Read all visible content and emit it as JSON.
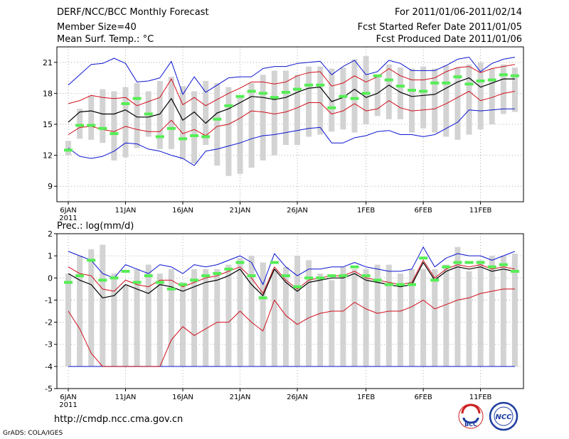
{
  "header": {
    "title": "DERF/NCC/BCC Monthly Forecast",
    "member_size": "Member Size=40",
    "variable": "Mean Surf. Temp.: °C",
    "forecast_period": "For 2011/01/06-2011/02/14",
    "start_date": "Fcst Started Refer Date 2011/01/05",
    "produced_date": "Fcst Produced Date 2011/01/06"
  },
  "footer": {
    "url": "http://cmdp.ncc.cma.gov.cn",
    "credit": "GrADS: COLA/IGES",
    "logo_bcc": "BCC",
    "logo_ncc": "NCC"
  },
  "colors": {
    "box": "#d3d3d3",
    "median": "#54ee54",
    "mean": "#000000",
    "spread": "#d0101c",
    "extreme": "#0a14d0",
    "grid": "#9a9a9a"
  },
  "chart_data": [
    {
      "type": "box_plume",
      "title": "Mean Surf. Temp.: °C",
      "x_tick_labels": [
        "6JAN",
        "11JAN",
        "16JAN",
        "21JAN",
        "26JAN",
        "1FEB",
        "6FEB",
        "11FEB"
      ],
      "x_year_label": "2011",
      "x_tick_days": [
        1,
        6,
        11,
        16,
        21,
        27,
        32,
        37
      ],
      "days": 40,
      "ylim": [
        7.5,
        22.5
      ],
      "y_ticks": [
        9,
        12,
        15,
        18,
        21
      ],
      "box_low": [
        12.0,
        13.6,
        13.5,
        13.2,
        11.5,
        11.8,
        12.7,
        13.8,
        12.6,
        12.6,
        11.6,
        11.2,
        13.0,
        11.0,
        10.0,
        10.2,
        10.8,
        11.5,
        12.0,
        13.0,
        13.0,
        13.8,
        14.0,
        14.3,
        14.5,
        14.2,
        15.0,
        15.8,
        15.5,
        15.5,
        14.2,
        14.6,
        14.2,
        13.8,
        13.5,
        14.0,
        14.5,
        15.0,
        16.0,
        16.2
      ],
      "box_high": [
        13.4,
        16.5,
        17.8,
        18.4,
        18.2,
        18.6,
        19.0,
        18.2,
        19.2,
        19.6,
        18.7,
        18.2,
        19.2,
        19.0,
        18.6,
        17.8,
        19.0,
        19.8,
        20.2,
        20.2,
        19.8,
        20.6,
        20.6,
        20.4,
        20.5,
        21.3,
        21.6,
        19.8,
        20.8,
        20.5,
        20.4,
        20.6,
        20.4,
        20.7,
        20.5,
        20.8,
        21.0,
        20.4,
        20.8,
        20.5
      ],
      "series": [
        {
          "name": "median",
          "values": [
            12.5,
            14.9,
            14.9,
            14.6,
            14.1,
            17.0,
            17.5,
            16.0,
            13.8,
            14.6,
            13.6,
            13.9,
            13.8,
            15.5,
            16.8,
            17.7,
            18.2,
            18.0,
            17.6,
            18.1,
            18.4,
            18.8,
            18.8,
            16.6,
            17.7,
            17.5,
            18.0,
            19.7,
            19.3,
            18.7,
            18.3,
            18.2,
            19.0,
            19.0,
            19.6,
            18.9,
            19.2,
            19.3,
            19.8,
            19.7
          ]
        },
        {
          "name": "ens-mean",
          "values": [
            15.2,
            16.2,
            16.3,
            16.0,
            16.0,
            16.4,
            15.7,
            15.7,
            16.0,
            17.5,
            15.4,
            16.2,
            15.1,
            16.1,
            16.5,
            17.1,
            17.7,
            17.6,
            17.4,
            17.6,
            18.1,
            18.5,
            18.6,
            17.2,
            17.6,
            18.4,
            17.6,
            18.0,
            18.8,
            18.1,
            17.7,
            17.8,
            17.9,
            18.5,
            19.1,
            19.5,
            18.6,
            19.0,
            19.4,
            19.4
          ]
        },
        {
          "name": "ens-plus-sd",
          "values": [
            17.0,
            17.3,
            17.8,
            17.6,
            17.5,
            17.6,
            16.8,
            17.2,
            17.6,
            19.4,
            16.9,
            17.6,
            16.8,
            17.4,
            18.0,
            18.5,
            19.1,
            19.1,
            18.9,
            19.1,
            19.7,
            20.0,
            20.1,
            18.7,
            19.0,
            19.7,
            19.1,
            19.6,
            20.4,
            19.7,
            19.3,
            19.3,
            19.5,
            20.1,
            20.5,
            20.6,
            20.0,
            20.4,
            20.6,
            20.8
          ]
        },
        {
          "name": "ens-minus-sd",
          "values": [
            14.0,
            14.7,
            14.8,
            14.5,
            14.3,
            14.8,
            14.5,
            14.3,
            14.3,
            15.4,
            14.1,
            14.5,
            13.9,
            14.8,
            15.0,
            15.6,
            16.3,
            16.2,
            16.0,
            16.2,
            16.6,
            17.1,
            17.1,
            16.0,
            16.3,
            17.0,
            16.3,
            16.5,
            17.3,
            16.6,
            16.3,
            16.4,
            16.5,
            17.0,
            17.6,
            18.2,
            17.3,
            17.6,
            18.0,
            18.2
          ]
        },
        {
          "name": "ens-max",
          "values": [
            18.8,
            19.8,
            20.8,
            20.9,
            21.4,
            20.9,
            19.1,
            19.2,
            19.5,
            21.1,
            17.9,
            19.6,
            18.1,
            18.8,
            19.5,
            19.6,
            19.6,
            20.4,
            20.6,
            20.6,
            20.9,
            21.0,
            21.1,
            19.8,
            20.6,
            21.2,
            19.8,
            20.1,
            21.2,
            20.9,
            20.2,
            20.2,
            20.2,
            20.7,
            21.3,
            21.5,
            20.1,
            20.9,
            21.3,
            21.5
          ]
        },
        {
          "name": "ens-min",
          "values": [
            12.7,
            11.9,
            11.7,
            11.9,
            12.4,
            13.2,
            13.1,
            12.6,
            12.4,
            12.0,
            11.7,
            11.0,
            12.4,
            12.6,
            12.9,
            13.2,
            13.6,
            13.9,
            14.0,
            14.2,
            14.4,
            14.6,
            14.7,
            13.2,
            13.2,
            13.7,
            13.9,
            14.3,
            14.4,
            14.0,
            14.0,
            13.8,
            14.0,
            14.6,
            15.2,
            16.4,
            16.3,
            16.4,
            16.5,
            16.5
          ]
        }
      ]
    },
    {
      "type": "box_plume",
      "title": "Prec.: log(mm/d)",
      "x_tick_labels": [
        "6JAN",
        "11JAN",
        "16JAN",
        "21JAN",
        "26JAN",
        "1FEB",
        "6FEB",
        "11FEB"
      ],
      "x_year_label": "2011",
      "x_tick_days": [
        1,
        6,
        11,
        16,
        21,
        27,
        32,
        37
      ],
      "days": 40,
      "ylim": [
        -5,
        2
      ],
      "y_ticks": [
        -5,
        -4,
        -3,
        -2,
        -1,
        0,
        1,
        2
      ],
      "box_low": [
        -4.0,
        -4.0,
        -4.0,
        -4.0,
        -4.0,
        -4.0,
        -4.0,
        -4.0,
        -4.0,
        -4.0,
        -4.0,
        -4.0,
        -4.0,
        -4.0,
        -4.0,
        -4.0,
        -4.0,
        -4.0,
        -4.0,
        -4.0,
        -4.0,
        -4.0,
        -4.0,
        -4.0,
        -4.0,
        -4.0,
        -4.0,
        -4.0,
        -4.0,
        -4.0,
        -4.0,
        -4.0,
        -4.0,
        -4.0,
        -4.0,
        -4.0,
        -4.0,
        -4.0,
        -4.0,
        -4.0
      ],
      "box_high": [
        0.2,
        1.0,
        1.3,
        1.5,
        0.2,
        -0.3,
        0.4,
        0.6,
        0.2,
        0.4,
        -0.2,
        0.4,
        0.4,
        0.4,
        0.6,
        0.9,
        1.0,
        0.7,
        0.4,
        0.5,
        1.0,
        0.8,
        0.2,
        -0.1,
        0.5,
        0.4,
        0.4,
        0.6,
        0.6,
        0.2,
        0.4,
        0.4,
        0.4,
        0.6,
        1.4,
        0.3,
        0.8,
        1.0,
        1.0,
        1.1
      ],
      "series": [
        {
          "name": "median",
          "values": [
            -0.2,
            0.1,
            0.8,
            -0.1,
            0.0,
            0.3,
            -0.2,
            0.1,
            -0.2,
            -0.5,
            -0.3,
            -0.1,
            0.1,
            0.2,
            0.4,
            0.7,
            0.1,
            -0.9,
            0.7,
            0.1,
            -0.4,
            0.0,
            0.0,
            0.1,
            0.1,
            0.5,
            0.1,
            -0.1,
            -0.3,
            -0.3,
            -0.3,
            0.9,
            -0.1,
            0.5,
            0.7,
            0.7,
            0.7,
            0.5,
            0.6,
            0.3
          ]
        },
        {
          "name": "ens-mean",
          "values": [
            0.2,
            -0.1,
            -0.3,
            -0.9,
            -0.8,
            -0.3,
            -0.5,
            -0.7,
            -0.3,
            -0.4,
            -0.6,
            -0.4,
            -0.2,
            -0.1,
            0.1,
            0.4,
            -0.3,
            -0.8,
            0.4,
            -0.2,
            -0.6,
            -0.2,
            -0.1,
            0.0,
            0.0,
            0.2,
            -0.1,
            -0.2,
            -0.3,
            -0.4,
            -0.3,
            0.7,
            -0.1,
            0.3,
            0.5,
            0.4,
            0.5,
            0.3,
            0.4,
            0.3
          ]
        },
        {
          "name": "ens-plus-sd",
          "values": [
            0.5,
            0.2,
            0.1,
            -0.5,
            -0.6,
            -0.1,
            -0.3,
            -0.4,
            -0.1,
            -0.1,
            -0.4,
            -0.2,
            0.0,
            0.1,
            0.3,
            0.5,
            0.0,
            -0.7,
            0.5,
            -0.1,
            -0.5,
            -0.1,
            0.0,
            0.1,
            0.1,
            0.3,
            0.0,
            -0.1,
            -0.2,
            -0.3,
            -0.2,
            0.8,
            0.0,
            0.4,
            0.6,
            0.5,
            0.6,
            0.4,
            0.5,
            0.4
          ]
        },
        {
          "name": "ens-minus-sd",
          "values": [
            -1.5,
            -2.3,
            -3.4,
            -4.0,
            -4.0,
            -4.0,
            -4.0,
            -4.0,
            -4.0,
            -2.8,
            -2.2,
            -2.6,
            -2.3,
            -2.0,
            -2.0,
            -1.5,
            -2.0,
            -2.4,
            -1.0,
            -1.7,
            -2.1,
            -1.8,
            -1.6,
            -1.5,
            -1.5,
            -1.1,
            -1.4,
            -1.6,
            -1.5,
            -1.5,
            -1.3,
            -1.0,
            -1.4,
            -1.2,
            -1.0,
            -0.9,
            -0.7,
            -0.6,
            -0.5,
            -0.5
          ]
        },
        {
          "name": "ens-max",
          "values": [
            1.2,
            1.0,
            0.8,
            0.2,
            0.0,
            0.6,
            0.4,
            0.2,
            0.6,
            0.5,
            0.2,
            0.6,
            0.5,
            0.6,
            0.8,
            1.0,
            0.7,
            -0.3,
            1.1,
            0.5,
            0.1,
            0.4,
            0.4,
            0.5,
            0.5,
            0.7,
            0.5,
            0.4,
            0.3,
            0.3,
            0.4,
            1.4,
            0.5,
            0.9,
            1.1,
            1.0,
            1.0,
            0.8,
            1.0,
            1.2
          ]
        },
        {
          "name": "ens-min",
          "values": [
            -4.0,
            -4.0,
            -4.0,
            -4.0,
            -4.0,
            -4.0,
            -4.0,
            -4.0,
            -4.0,
            -4.0,
            -4.0,
            -4.0,
            -4.0,
            -4.0,
            -4.0,
            -4.0,
            -4.0,
            -4.0,
            -4.0,
            -4.0,
            -4.0,
            -4.0,
            -4.0,
            -4.0,
            -4.0,
            -4.0,
            -4.0,
            -4.0,
            -4.0,
            -4.0,
            -4.0,
            -4.0,
            -4.0,
            -4.0,
            -4.0,
            -4.0,
            -4.0,
            -4.0,
            -4.0,
            -4.0
          ]
        }
      ]
    }
  ]
}
